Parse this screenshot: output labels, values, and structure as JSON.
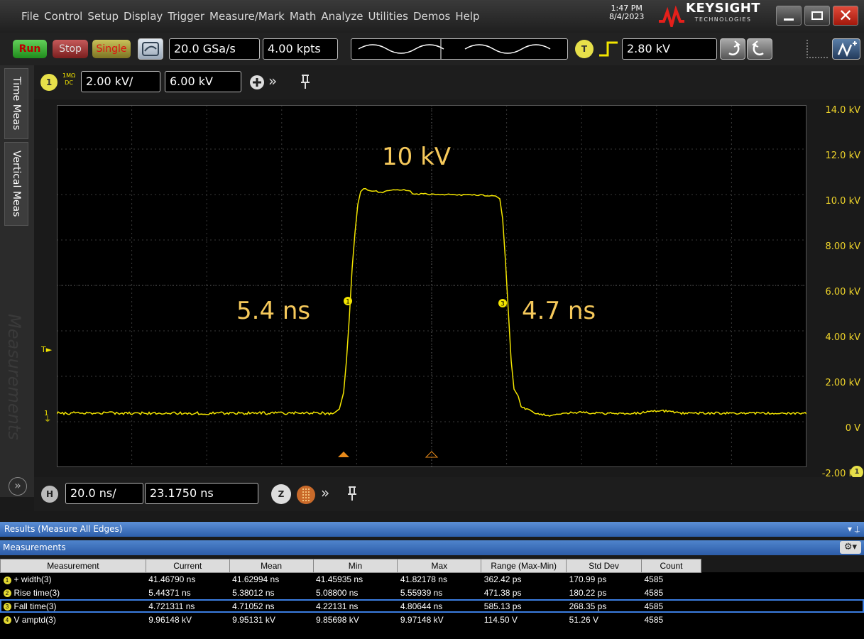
{
  "menu": [
    "File",
    "Control",
    "Setup",
    "Display",
    "Trigger",
    "Measure/Mark",
    "Math",
    "Analyze",
    "Utilities",
    "Demos",
    "Help"
  ],
  "clock": {
    "time": "1:47 PM",
    "date": "8/4/2023"
  },
  "brand": {
    "name": "KEYSIGHT",
    "sub": "TECHNOLOGIES"
  },
  "controls": {
    "run": "Run",
    "stop": "Stop",
    "single": "Single",
    "sample_rate": "20.0 GSa/s",
    "memory_depth": "4.00 kpts",
    "trigger_badge": "T",
    "trigger_level": "2.80 kV"
  },
  "channel": {
    "badge": "1",
    "coupling_top": "1MΩ",
    "coupling_bottom": "DC",
    "scale": "2.00 kV/",
    "offset": "6.00 kV"
  },
  "side_tabs": [
    "Time Meas",
    "Vertical Meas",
    "Measurements"
  ],
  "scale_labels": [
    "14.0 kV",
    "12.0 kV",
    "10.0 kV",
    "8.00 kV",
    "6.00 kV",
    "4.00 kV",
    "2.00 kV",
    "0 V",
    "-2.00 kV"
  ],
  "annotations": {
    "peak": "10 kV",
    "rise": "5.4 ns",
    "fall": "4.7 ns"
  },
  "markers": {
    "trigger": "T",
    "ground": "1",
    "channel": "1",
    "mark1": "1",
    "mark3": "3"
  },
  "timebase": {
    "badge": "H",
    "scale": "20.0 ns/",
    "delay": "23.1750 ns",
    "zoom_badge": "Z"
  },
  "results": {
    "title": "Results  (Measure All Edges)",
    "section": "Measurements"
  },
  "table": {
    "headers": [
      "Measurement",
      "Current",
      "Mean",
      "Min",
      "Max",
      "Range (Max-Min)",
      "Std Dev",
      "Count"
    ],
    "rows": [
      {
        "num": "1",
        "cells": [
          "+ width(3)",
          "41.46790 ns",
          "41.62994 ns",
          "41.45935 ns",
          "41.82178 ns",
          "362.42 ps",
          "170.99 ps",
          "4585"
        ]
      },
      {
        "num": "2",
        "cells": [
          "Rise time(3)",
          "5.44371 ns",
          "5.38012 ns",
          "5.08800 ns",
          "5.55939 ns",
          "471.38 ps",
          "180.22 ps",
          "4585"
        ]
      },
      {
        "num": "3",
        "cells": [
          "Fall time(3)",
          "4.721311 ns",
          "4.71052 ns",
          "4.22131 ns",
          "4.80644 ns",
          "585.13 ps",
          "268.35 ps",
          "4585"
        ]
      },
      {
        "num": "4",
        "cells": [
          "V amptd(3)",
          "9.96148 kV",
          "9.95131 kV",
          "9.85698 kV",
          "9.97148 kV",
          "114.50 V",
          "51.26 V",
          "4585"
        ]
      }
    ]
  },
  "colors": {
    "trace": "#f3e500",
    "annotation": "#f6c95b",
    "results_blue": "#3b6fc2"
  }
}
